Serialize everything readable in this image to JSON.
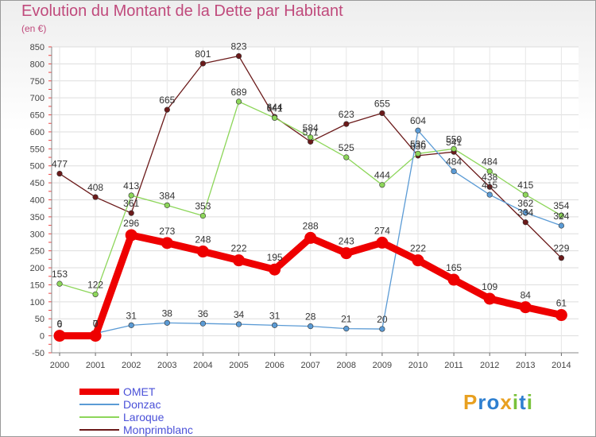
{
  "title": "Evolution du Montant de la Dette par Habitant",
  "subtitle": "(en €)",
  "logo": {
    "letters": [
      "P",
      "r",
      "o",
      "x",
      "i",
      "t",
      "i"
    ],
    "colors": [
      "#e8a020",
      "#2e7fd0",
      "#2e7fd0",
      "#e8a020",
      "#79c13a",
      "#2e7fd0",
      "#79c13a"
    ]
  },
  "chart_data": {
    "type": "line",
    "title": "Evolution du Montant de la Dette par Habitant",
    "ylabel": "(en €)",
    "x": [
      "2000",
      "2001",
      "2002",
      "2003",
      "2004",
      "2005",
      "2006",
      "2007",
      "2008",
      "2009",
      "2010",
      "2011",
      "2012",
      "2013",
      "2014"
    ],
    "ylim": [
      -50,
      850
    ],
    "yticks": [
      -50,
      0,
      50,
      100,
      150,
      200,
      250,
      300,
      350,
      400,
      450,
      500,
      550,
      600,
      650,
      700,
      750,
      800,
      850
    ],
    "grid": true,
    "legend_position": "bottom",
    "series": [
      {
        "name": "OMET",
        "color": "#ee0000",
        "values": [
          0,
          0,
          296,
          273,
          248,
          222,
          195,
          288,
          243,
          274,
          222,
          165,
          109,
          84,
          61
        ],
        "labels": [
          "0",
          "0",
          "296",
          "273",
          "248",
          "222",
          "195",
          "288",
          "243",
          "274",
          "222",
          "165",
          "109",
          "84",
          "61"
        ]
      },
      {
        "name": "Donzac",
        "color": "#5b9bd5",
        "values": [
          6,
          7,
          31,
          38,
          36,
          34,
          31,
          28,
          21,
          20,
          604,
          484,
          415,
          362,
          324
        ],
        "labels": [
          "6",
          "7",
          "31",
          "38",
          "36",
          "34",
          "31",
          "28",
          "21",
          "20",
          "604",
          "484",
          "415",
          "362",
          "324"
        ]
      },
      {
        "name": "Laroque",
        "color": "#8dd65a",
        "values": [
          153,
          122,
          413,
          384,
          353,
          689,
          641,
          584,
          525,
          444,
          536,
          550,
          484,
          415,
          354
        ],
        "labels": [
          "153",
          "122",
          "413",
          "384",
          "353",
          "689",
          "641",
          "584",
          "525",
          "444",
          "536",
          "550",
          "484",
          "415",
          "354"
        ]
      },
      {
        "name": "Monprimblanc",
        "color": "#6b1a1a",
        "values": [
          477,
          408,
          361,
          665,
          801,
          823,
          644,
          571,
          623,
          655,
          530,
          541,
          438,
          334,
          229
        ],
        "labels": [
          "477",
          "408",
          "361",
          "665",
          "801",
          "823",
          "644",
          "571",
          "623",
          "655",
          "530",
          "541",
          "438",
          "334",
          "229"
        ]
      }
    ]
  }
}
